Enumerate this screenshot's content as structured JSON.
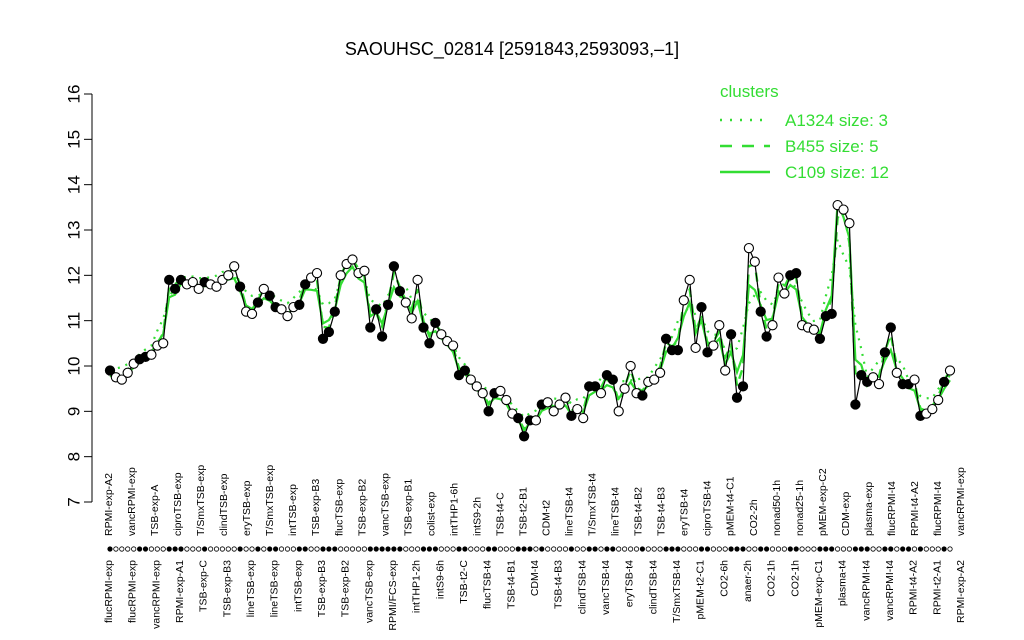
{
  "chart_data": {
    "type": "line",
    "title": "SAOUHSC_02814 [2591843,2593093,–1]",
    "xlabel": "",
    "ylabel": "",
    "ylim": [
      7,
      16
    ],
    "yticks": [
      7,
      8,
      9,
      10,
      11,
      12,
      13,
      14,
      15,
      16
    ],
    "grid": false,
    "legend": {
      "title": "clusters",
      "placement": "top-right",
      "color": "#33dd33",
      "entries": [
        {
          "label": "A1324 size: 3",
          "style": "dotted"
        },
        {
          "label": "B455 size: 5",
          "style": "dashed"
        },
        {
          "label": "C109 size: 12",
          "style": "solid"
        }
      ]
    },
    "point_types": {
      "filled": "highlighted sample",
      "open": "other sample"
    },
    "categories": [
      "flucRPMI-exp",
      "RPMI-exp-A2",
      "flucRPMI-exp",
      "vancRPMI-exp",
      "RPMI-exp-A1",
      "TSB-exp-A",
      "TSB-exp-A",
      "TSB-exp-C",
      "TSB-exp-C",
      "ciproTSB-exp",
      "TSB-exp-B3",
      "T/SmxTSB-exp",
      "lineTSB-exp",
      "clindTSB-exp",
      "lineTSB-exp",
      "eryTSB-exp",
      "intTSB-exp",
      "T/SmxTSB-exp",
      "TSB-exp-B3",
      "flucTSB-exp",
      "TSB-exp-B2",
      "flucTSB-exp",
      "vancTSB-exp",
      "TSB-exp-B1",
      "TSB-exp-B1",
      "RPMI/FCS-exp",
      "RPMI/FCS-exp",
      "colist-exp",
      "colist-exp",
      "intTHP1-2h",
      "intTHP1-6h",
      "intTHP1-2h",
      "intS9-6h",
      "intS9-2h",
      "intS9-6h",
      "TSB-t2-C",
      "TSB-t4-C",
      "TSB-t2-C",
      "flucTSB-t4",
      "TSB-t2-B1",
      "flucTSB-t4",
      "TSB-t4-B1",
      "CDM-t2",
      "CDM-t4",
      "CDM-t2",
      "CDM-t4",
      "lineTSB-t4",
      "TSB-t4-B3",
      "T/SmxTSB-t4",
      "lineTSB-t4",
      "clindTSB-t4",
      "TSB-t4-B2",
      "vancTSB-t4",
      "eryTSB-t4",
      "TSB-t4-B2",
      "eryTSB-t4",
      "TSB-t4-B3",
      "clindTSB-t4",
      "T/SmxTSB-t4",
      "ciproTSB-t4",
      "pMEM-t2-C1",
      "pMEM-t2-C1",
      "pMEM-t4-C1",
      "pMEM-t4-C1",
      "CO2-6h",
      "CO2-2h",
      "CO2-6h",
      "CO2-2h",
      "anaer-2h",
      "anaer-2h",
      "nonad50-1h",
      "nonad50-1h",
      "CO2-1h",
      "nonad25-1h",
      "CO2-1h",
      "nonad25-1h",
      "pMEM-exp-C2",
      "pMEM-exp-C1",
      "pMEM-exp-C2",
      "pMEM-exp-C1",
      "CDM-exp",
      "CDM-exp",
      "plasma-t4",
      "plasma-t4",
      "flucRPMI-t4",
      "vancRPMI-t4",
      "RPMI-t4-A2",
      "vancRPMI-t4",
      "flucRPMI-t4",
      "RPMI-t4-A2",
      "RPMI-t2-A1",
      "plasma-exp",
      "plasma-exp",
      "RPMI-exp-A2",
      "vancRPMI-exp"
    ],
    "axis_labels_top": [
      "RPMI-exp-A2",
      "vancRPMI-exp",
      "TSB-exp-A",
      "ciproTSB-exp",
      "T/SmxTSB-exp",
      "clindTSB-exp",
      "eryTSB-exp",
      "T/SmxTSB-exp",
      "intTSB-exp",
      "TSB-exp-B3",
      "flucTSB-exp",
      "TSB-exp-B2",
      "vancTSB-exp",
      "TSB-exp-B1",
      "colist-exp",
      "intTHP1-6h",
      "intS9-2h",
      "TSB-t4-C",
      "TSB-t2-B1",
      "CDM-t2",
      "lineTSB-t4",
      "T/SmxTSB-t4",
      "lineTSB-t4",
      "TSB-t4-B2",
      "TSB-t4-B3",
      "eryTSB-t4",
      "ciproTSB-t4",
      "pMEM-t4-C1",
      "CO2-2h",
      "nonad50-1h",
      "nonad25-1h",
      "pMEM-exp-C2",
      "CDM-exp",
      "plasma-exp",
      "flucRPMI-t4",
      "RPMI-t4-A2",
      "flucRPMI-t4",
      "vancRPMI-exp"
    ],
    "axis_labels_bottom": [
      "flucRPMI-exp",
      "flucRPMI-exp",
      "vancRPMI-exp",
      "RPMI-exp-A1",
      "TSB-exp-C",
      "TSB-exp-B3",
      "lineTSB-exp",
      "lineTSB-exp",
      "intTSB-exp",
      "TSB-exp-B3",
      "TSB-exp-B2",
      "vancTSB-exp",
      "RPMI/FCS-exp",
      "intTHP1-2h",
      "intS9-6h",
      "TSB-t2-C",
      "flucTSB-t4",
      "TSB-t4-B1",
      "CDM-t4",
      "TSB-t4-B3",
      "clindTSB-t4",
      "vancTSB-t4",
      "eryTSB-t4",
      "clindTSB-t4",
      "T/SmxTSB-t4",
      "pMEM-t2-C1",
      "CO2-6h",
      "anaer-2h",
      "CO2-1h",
      "CO2-1h",
      "pMEM-exp-C1",
      "plasma-t4",
      "vancRPMI-t4",
      "vancRPMI-t4",
      "RPMI-t4-A2",
      "RPMI-t2-A1",
      "RPMI-exp-A2"
    ],
    "points": [
      {
        "x": 0,
        "y": 9.9,
        "filled": true
      },
      {
        "x": 1,
        "y": 9.75,
        "filled": false
      },
      {
        "x": 2,
        "y": 9.7,
        "filled": false
      },
      {
        "x": 3,
        "y": 9.85,
        "filled": false
      },
      {
        "x": 4,
        "y": 10.05,
        "filled": false
      },
      {
        "x": 5,
        "y": 10.15,
        "filled": true
      },
      {
        "x": 6,
        "y": 10.2,
        "filled": true
      },
      {
        "x": 7,
        "y": 10.25,
        "filled": false
      },
      {
        "x": 8,
        "y": 10.45,
        "filled": false
      },
      {
        "x": 9,
        "y": 10.5,
        "filled": false
      },
      {
        "x": 10,
        "y": 11.9,
        "filled": true
      },
      {
        "x": 11,
        "y": 11.7,
        "filled": true
      },
      {
        "x": 12,
        "y": 11.9,
        "filled": true
      },
      {
        "x": 13,
        "y": 11.8,
        "filled": false
      },
      {
        "x": 14,
        "y": 11.85,
        "filled": false
      },
      {
        "x": 15,
        "y": 11.7,
        "filled": false
      },
      {
        "x": 16,
        "y": 11.85,
        "filled": true
      },
      {
        "x": 17,
        "y": 11.8,
        "filled": false
      },
      {
        "x": 18,
        "y": 11.75,
        "filled": false
      },
      {
        "x": 19,
        "y": 11.9,
        "filled": false
      },
      {
        "x": 20,
        "y": 12.0,
        "filled": false
      },
      {
        "x": 21,
        "y": 12.2,
        "filled": false
      },
      {
        "x": 22,
        "y": 11.75,
        "filled": true
      },
      {
        "x": 23,
        "y": 11.2,
        "filled": false
      },
      {
        "x": 24,
        "y": 11.15,
        "filled": false
      },
      {
        "x": 25,
        "y": 11.4,
        "filled": true
      },
      {
        "x": 26,
        "y": 11.7,
        "filled": false
      },
      {
        "x": 27,
        "y": 11.55,
        "filled": true
      },
      {
        "x": 28,
        "y": 11.3,
        "filled": true
      },
      {
        "x": 29,
        "y": 11.25,
        "filled": false
      },
      {
        "x": 30,
        "y": 11.1,
        "filled": false
      },
      {
        "x": 31,
        "y": 11.3,
        "filled": false
      },
      {
        "x": 32,
        "y": 11.35,
        "filled": true
      },
      {
        "x": 33,
        "y": 11.8,
        "filled": true
      },
      {
        "x": 34,
        "y": 11.95,
        "filled": false
      },
      {
        "x": 35,
        "y": 12.05,
        "filled": false
      },
      {
        "x": 36,
        "y": 10.6,
        "filled": true
      },
      {
        "x": 37,
        "y": 10.75,
        "filled": true
      },
      {
        "x": 38,
        "y": 11.2,
        "filled": true
      },
      {
        "x": 39,
        "y": 12.0,
        "filled": false
      },
      {
        "x": 40,
        "y": 12.25,
        "filled": false
      },
      {
        "x": 41,
        "y": 12.35,
        "filled": false
      },
      {
        "x": 42,
        "y": 12.05,
        "filled": false
      },
      {
        "x": 43,
        "y": 12.1,
        "filled": false
      },
      {
        "x": 44,
        "y": 10.85,
        "filled": true
      },
      {
        "x": 45,
        "y": 11.25,
        "filled": true
      },
      {
        "x": 46,
        "y": 10.65,
        "filled": true
      },
      {
        "x": 47,
        "y": 11.35,
        "filled": true
      },
      {
        "x": 48,
        "y": 12.2,
        "filled": true
      },
      {
        "x": 49,
        "y": 11.65,
        "filled": true
      },
      {
        "x": 50,
        "y": 11.4,
        "filled": false
      },
      {
        "x": 51,
        "y": 11.05,
        "filled": false
      },
      {
        "x": 52,
        "y": 11.9,
        "filled": false
      },
      {
        "x": 53,
        "y": 10.85,
        "filled": true
      },
      {
        "x": 54,
        "y": 10.5,
        "filled": true
      },
      {
        "x": 55,
        "y": 10.95,
        "filled": true
      },
      {
        "x": 56,
        "y": 10.7,
        "filled": false
      },
      {
        "x": 57,
        "y": 10.55,
        "filled": false
      },
      {
        "x": 58,
        "y": 10.45,
        "filled": false
      },
      {
        "x": 59,
        "y": 9.8,
        "filled": true
      },
      {
        "x": 60,
        "y": 9.9,
        "filled": true
      },
      {
        "x": 61,
        "y": 9.7,
        "filled": false
      },
      {
        "x": 62,
        "y": 9.55,
        "filled": false
      },
      {
        "x": 63,
        "y": 9.4,
        "filled": false
      },
      {
        "x": 64,
        "y": 9.0,
        "filled": true
      },
      {
        "x": 65,
        "y": 9.4,
        "filled": true
      },
      {
        "x": 66,
        "y": 9.45,
        "filled": false
      },
      {
        "x": 67,
        "y": 9.25,
        "filled": false
      },
      {
        "x": 68,
        "y": 8.95,
        "filled": false
      },
      {
        "x": 69,
        "y": 8.85,
        "filled": true
      },
      {
        "x": 70,
        "y": 8.45,
        "filled": true
      },
      {
        "x": 71,
        "y": 8.8,
        "filled": true
      },
      {
        "x": 72,
        "y": 8.8,
        "filled": false
      },
      {
        "x": 73,
        "y": 9.15,
        "filled": true
      },
      {
        "x": 74,
        "y": 9.2,
        "filled": false
      },
      {
        "x": 75,
        "y": 9.0,
        "filled": false
      },
      {
        "x": 76,
        "y": 9.15,
        "filled": false
      },
      {
        "x": 77,
        "y": 9.3,
        "filled": false
      },
      {
        "x": 78,
        "y": 8.9,
        "filled": true
      },
      {
        "x": 79,
        "y": 9.05,
        "filled": false
      },
      {
        "x": 80,
        "y": 8.85,
        "filled": false
      },
      {
        "x": 81,
        "y": 9.55,
        "filled": true
      },
      {
        "x": 82,
        "y": 9.55,
        "filled": true
      },
      {
        "x": 83,
        "y": 9.4,
        "filled": false
      },
      {
        "x": 84,
        "y": 9.8,
        "filled": true
      },
      {
        "x": 85,
        "y": 9.7,
        "filled": true
      },
      {
        "x": 86,
        "y": 9.0,
        "filled": false
      },
      {
        "x": 87,
        "y": 9.5,
        "filled": false
      },
      {
        "x": 88,
        "y": 10.0,
        "filled": false
      },
      {
        "x": 89,
        "y": 9.4,
        "filled": false
      },
      {
        "x": 90,
        "y": 9.35,
        "filled": true
      },
      {
        "x": 91,
        "y": 9.65,
        "filled": false
      },
      {
        "x": 92,
        "y": 9.7,
        "filled": false
      },
      {
        "x": 93,
        "y": 9.85,
        "filled": false
      },
      {
        "x": 94,
        "y": 10.6,
        "filled": true
      },
      {
        "x": 95,
        "y": 10.35,
        "filled": true
      },
      {
        "x": 96,
        "y": 10.35,
        "filled": true
      },
      {
        "x": 97,
        "y": 11.45,
        "filled": false
      },
      {
        "x": 98,
        "y": 11.9,
        "filled": false
      },
      {
        "x": 99,
        "y": 10.4,
        "filled": false
      },
      {
        "x": 100,
        "y": 11.3,
        "filled": true
      },
      {
        "x": 101,
        "y": 10.3,
        "filled": true
      },
      {
        "x": 102,
        "y": 10.45,
        "filled": false
      },
      {
        "x": 103,
        "y": 10.9,
        "filled": false
      },
      {
        "x": 104,
        "y": 9.9,
        "filled": false
      },
      {
        "x": 105,
        "y": 10.7,
        "filled": true
      },
      {
        "x": 106,
        "y": 9.3,
        "filled": true
      },
      {
        "x": 107,
        "y": 9.55,
        "filled": true
      },
      {
        "x": 108,
        "y": 12.6,
        "filled": false
      },
      {
        "x": 109,
        "y": 12.3,
        "filled": false
      },
      {
        "x": 110,
        "y": 11.2,
        "filled": true
      },
      {
        "x": 111,
        "y": 10.65,
        "filled": true
      },
      {
        "x": 112,
        "y": 10.9,
        "filled": false
      },
      {
        "x": 113,
        "y": 11.95,
        "filled": false
      },
      {
        "x": 114,
        "y": 11.6,
        "filled": false
      },
      {
        "x": 115,
        "y": 12.0,
        "filled": true
      },
      {
        "x": 116,
        "y": 12.05,
        "filled": true
      },
      {
        "x": 117,
        "y": 10.9,
        "filled": false
      },
      {
        "x": 118,
        "y": 10.85,
        "filled": false
      },
      {
        "x": 119,
        "y": 10.8,
        "filled": false
      },
      {
        "x": 120,
        "y": 10.6,
        "filled": true
      },
      {
        "x": 121,
        "y": 11.1,
        "filled": true
      },
      {
        "x": 122,
        "y": 11.15,
        "filled": true
      },
      {
        "x": 123,
        "y": 13.55,
        "filled": false
      },
      {
        "x": 124,
        "y": 13.45,
        "filled": false
      },
      {
        "x": 125,
        "y": 13.15,
        "filled": false
      },
      {
        "x": 126,
        "y": 9.15,
        "filled": true
      },
      {
        "x": 127,
        "y": 9.8,
        "filled": true
      },
      {
        "x": 128,
        "y": 9.65,
        "filled": true
      },
      {
        "x": 129,
        "y": 9.75,
        "filled": false
      },
      {
        "x": 130,
        "y": 9.6,
        "filled": false
      },
      {
        "x": 131,
        "y": 10.3,
        "filled": true
      },
      {
        "x": 132,
        "y": 10.85,
        "filled": true
      },
      {
        "x": 133,
        "y": 9.85,
        "filled": false
      },
      {
        "x": 134,
        "y": 9.6,
        "filled": true
      },
      {
        "x": 135,
        "y": 9.6,
        "filled": true
      },
      {
        "x": 136,
        "y": 9.7,
        "filled": false
      },
      {
        "x": 137,
        "y": 8.9,
        "filled": true
      },
      {
        "x": 138,
        "y": 8.95,
        "filled": false
      },
      {
        "x": 139,
        "y": 9.05,
        "filled": false
      },
      {
        "x": 140,
        "y": 9.25,
        "filled": false
      },
      {
        "x": 141,
        "y": 9.65,
        "filled": true
      },
      {
        "x": 142,
        "y": 9.9,
        "filled": false
      }
    ],
    "cluster_lines": [
      {
        "name": "A1324 size: 3",
        "style": "dotted"
      },
      {
        "name": "B455 size: 5",
        "style": "dashed"
      },
      {
        "name": "C109 size: 12",
        "style": "solid"
      }
    ]
  }
}
